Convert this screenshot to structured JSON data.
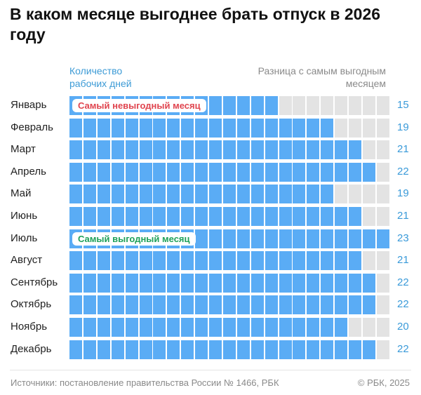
{
  "title": "В каком месяце выгоднее брать отпуск в 2026 году",
  "header_left": [
    "Количество",
    "рабочих дней"
  ],
  "header_right": [
    "Разница с самым выгодным",
    "месяцем"
  ],
  "footer": {
    "source": "Источники: постановление правительства России № 1466, РБК",
    "copyright": "© РБК, 2025"
  },
  "colors": {
    "filled": "#5aacf5",
    "empty": "#e3e3e3",
    "worst": "#e0454f",
    "best": "#1fa15a",
    "value": "#3a9ad9"
  },
  "chart_data": {
    "type": "bar",
    "categories": [
      "Январь",
      "Февраль",
      "Март",
      "Апрель",
      "Май",
      "Июнь",
      "Июль",
      "Август",
      "Сентябрь",
      "Октябрь",
      "Ноябрь",
      "Декабрь"
    ],
    "values": [
      15,
      19,
      21,
      22,
      19,
      21,
      23,
      21,
      22,
      22,
      20,
      22
    ],
    "max": 23,
    "annotations": [
      {
        "category": "Январь",
        "text": "Самый невыгодный месяц",
        "kind": "worst"
      },
      {
        "category": "Июль",
        "text": "Самый выгодный месяц",
        "kind": "best"
      }
    ]
  }
}
